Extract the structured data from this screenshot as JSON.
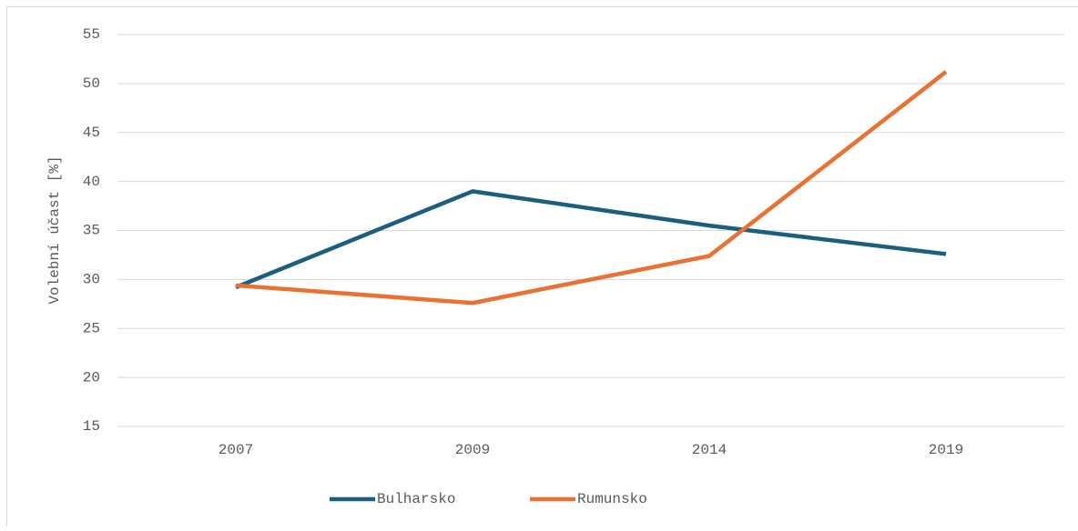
{
  "chart_data": {
    "type": "line",
    "ylabel": "Volební účast [%]",
    "categories": [
      "2007",
      "2009",
      "2014",
      "2019"
    ],
    "series": [
      {
        "name": "Bulharsko",
        "color": "#1b5e7e",
        "values": [
          29.2,
          39.0,
          35.5,
          32.6
        ]
      },
      {
        "name": "Rumunsko",
        "color": "#e97132",
        "values": [
          29.4,
          27.6,
          32.4,
          51.2
        ]
      }
    ],
    "ylim": [
      15,
      55
    ],
    "yticks": [
      15,
      20,
      25,
      30,
      35,
      40,
      45,
      50,
      55
    ],
    "grid": true,
    "legend": "bottom"
  }
}
